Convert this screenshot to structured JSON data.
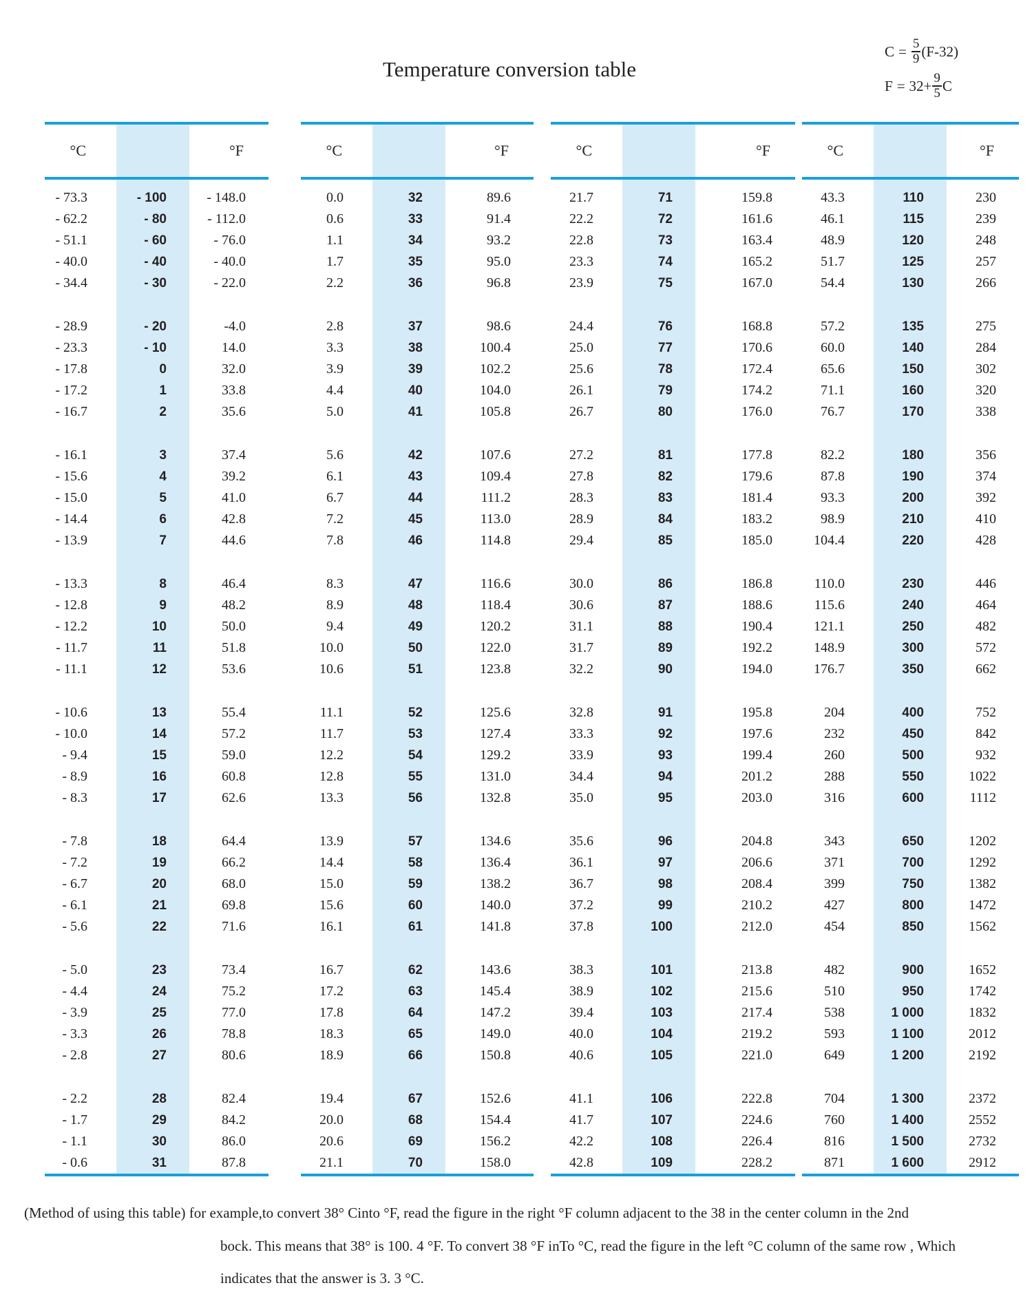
{
  "page": {
    "title": "Temperature conversion table"
  },
  "formulas": {
    "celsius": {
      "lhs": "C",
      "eq": "=",
      "pre": "",
      "num": "5",
      "den": "9",
      "suf": "(F-32)"
    },
    "fahrenheit": {
      "lhs": "F",
      "eq": "=",
      "pre": "32+",
      "num": "9",
      "den": "5",
      "suf": "C"
    }
  },
  "table": {
    "col_c": "°C",
    "col_f": "°F",
    "groups": [
      {
        "blocks": [
          [
            [
              "- 73.3",
              "- 100",
              "- 148.0"
            ],
            [
              "- 62.2",
              "- 80",
              "- 112.0"
            ],
            [
              "- 51.1",
              "- 60",
              "- 76.0"
            ],
            [
              "- 40.0",
              "- 40",
              "- 40.0"
            ],
            [
              "- 34.4",
              "- 30",
              "- 22.0"
            ]
          ],
          [
            [
              "- 28.9",
              "- 20",
              "-4.0"
            ],
            [
              "- 23.3",
              "- 10",
              "14.0"
            ],
            [
              "- 17.8",
              "0",
              "32.0"
            ],
            [
              "- 17.2",
              "1",
              "33.8"
            ],
            [
              "- 16.7",
              "2",
              "35.6"
            ]
          ],
          [
            [
              "- 16.1",
              "3",
              "37.4"
            ],
            [
              "- 15.6",
              "4",
              "39.2"
            ],
            [
              "- 15.0",
              "5",
              "41.0"
            ],
            [
              "- 14.4",
              "6",
              "42.8"
            ],
            [
              "- 13.9",
              "7",
              "44.6"
            ]
          ],
          [
            [
              "- 13.3",
              "8",
              "46.4"
            ],
            [
              "- 12.8",
              "9",
              "48.2"
            ],
            [
              "- 12.2",
              "10",
              "50.0"
            ],
            [
              "- 11.7",
              "11",
              "51.8"
            ],
            [
              "- 11.1",
              "12",
              "53.6"
            ]
          ],
          [
            [
              "- 10.6",
              "13",
              "55.4"
            ],
            [
              "- 10.0",
              "14",
              "57.2"
            ],
            [
              "- 9.4",
              "15",
              "59.0"
            ],
            [
              "- 8.9",
              "16",
              "60.8"
            ],
            [
              "- 8.3",
              "17",
              "62.6"
            ]
          ],
          [
            [
              "- 7.8",
              "18",
              "64.4"
            ],
            [
              "- 7.2",
              "19",
              "66.2"
            ],
            [
              "- 6.7",
              "20",
              "68.0"
            ],
            [
              "- 6.1",
              "21",
              "69.8"
            ],
            [
              "- 5.6",
              "22",
              "71.6"
            ]
          ],
          [
            [
              "- 5.0",
              "23",
              "73.4"
            ],
            [
              "- 4.4",
              "24",
              "75.2"
            ],
            [
              "- 3.9",
              "25",
              "77.0"
            ],
            [
              "- 3.3",
              "26",
              "78.8"
            ],
            [
              "- 2.8",
              "27",
              "80.6"
            ]
          ],
          [
            [
              "- 2.2",
              "28",
              "82.4"
            ],
            [
              "- 1.7",
              "29",
              "84.2"
            ],
            [
              "- 1.1",
              "30",
              "86.0"
            ],
            [
              "- 0.6",
              "31",
              "87.8"
            ]
          ]
        ]
      },
      {
        "blocks": [
          [
            [
              "0.0",
              "32",
              "89.6"
            ],
            [
              "0.6",
              "33",
              "91.4"
            ],
            [
              "1.1",
              "34",
              "93.2"
            ],
            [
              "1.7",
              "35",
              "95.0"
            ],
            [
              "2.2",
              "36",
              "96.8"
            ]
          ],
          [
            [
              "2.8",
              "37",
              "98.6"
            ],
            [
              "3.3",
              "38",
              "100.4"
            ],
            [
              "3.9",
              "39",
              "102.2"
            ],
            [
              "4.4",
              "40",
              "104.0"
            ],
            [
              "5.0",
              "41",
              "105.8"
            ]
          ],
          [
            [
              "5.6",
              "42",
              "107.6"
            ],
            [
              "6.1",
              "43",
              "109.4"
            ],
            [
              "6.7",
              "44",
              "111.2"
            ],
            [
              "7.2",
              "45",
              "113.0"
            ],
            [
              "7.8",
              "46",
              "114.8"
            ]
          ],
          [
            [
              "8.3",
              "47",
              "116.6"
            ],
            [
              "8.9",
              "48",
              "118.4"
            ],
            [
              "9.4",
              "49",
              "120.2"
            ],
            [
              "10.0",
              "50",
              "122.0"
            ],
            [
              "10.6",
              "51",
              "123.8"
            ]
          ],
          [
            [
              "11.1",
              "52",
              "125.6"
            ],
            [
              "11.7",
              "53",
              "127.4"
            ],
            [
              "12.2",
              "54",
              "129.2"
            ],
            [
              "12.8",
              "55",
              "131.0"
            ],
            [
              "13.3",
              "56",
              "132.8"
            ]
          ],
          [
            [
              "13.9",
              "57",
              "134.6"
            ],
            [
              "14.4",
              "58",
              "136.4"
            ],
            [
              "15.0",
              "59",
              "138.2"
            ],
            [
              "15.6",
              "60",
              "140.0"
            ],
            [
              "16.1",
              "61",
              "141.8"
            ]
          ],
          [
            [
              "16.7",
              "62",
              "143.6"
            ],
            [
              "17.2",
              "63",
              "145.4"
            ],
            [
              "17.8",
              "64",
              "147.2"
            ],
            [
              "18.3",
              "65",
              "149.0"
            ],
            [
              "18.9",
              "66",
              "150.8"
            ]
          ],
          [
            [
              "19.4",
              "67",
              "152.6"
            ],
            [
              "20.0",
              "68",
              "154.4"
            ],
            [
              "20.6",
              "69",
              "156.2"
            ],
            [
              "21.1",
              "70",
              "158.0"
            ]
          ]
        ]
      },
      {
        "blocks": [
          [
            [
              "21.7",
              "71",
              "159.8"
            ],
            [
              "22.2",
              "72",
              "161.6"
            ],
            [
              "22.8",
              "73",
              "163.4"
            ],
            [
              "23.3",
              "74",
              "165.2"
            ],
            [
              "23.9",
              "75",
              "167.0"
            ]
          ],
          [
            [
              "24.4",
              "76",
              "168.8"
            ],
            [
              "25.0",
              "77",
              "170.6"
            ],
            [
              "25.6",
              "78",
              "172.4"
            ],
            [
              "26.1",
              "79",
              "174.2"
            ],
            [
              "26.7",
              "80",
              "176.0"
            ]
          ],
          [
            [
              "27.2",
              "81",
              "177.8"
            ],
            [
              "27.8",
              "82",
              "179.6"
            ],
            [
              "28.3",
              "83",
              "181.4"
            ],
            [
              "28.9",
              "84",
              "183.2"
            ],
            [
              "29.4",
              "85",
              "185.0"
            ]
          ],
          [
            [
              "30.0",
              "86",
              "186.8"
            ],
            [
              "30.6",
              "87",
              "188.6"
            ],
            [
              "31.1",
              "88",
              "190.4"
            ],
            [
              "31.7",
              "89",
              "192.2"
            ],
            [
              "32.2",
              "90",
              "194.0"
            ]
          ],
          [
            [
              "32.8",
              "91",
              "195.8"
            ],
            [
              "33.3",
              "92",
              "197.6"
            ],
            [
              "33.9",
              "93",
              "199.4"
            ],
            [
              "34.4",
              "94",
              "201.2"
            ],
            [
              "35.0",
              "95",
              "203.0"
            ]
          ],
          [
            [
              "35.6",
              "96",
              "204.8"
            ],
            [
              "36.1",
              "97",
              "206.6"
            ],
            [
              "36.7",
              "98",
              "208.4"
            ],
            [
              "37.2",
              "99",
              "210.2"
            ],
            [
              "37.8",
              "100",
              "212.0"
            ]
          ],
          [
            [
              "38.3",
              "101",
              "213.8"
            ],
            [
              "38.9",
              "102",
              "215.6"
            ],
            [
              "39.4",
              "103",
              "217.4"
            ],
            [
              "40.0",
              "104",
              "219.2"
            ],
            [
              "40.6",
              "105",
              "221.0"
            ]
          ],
          [
            [
              "41.1",
              "106",
              "222.8"
            ],
            [
              "41.7",
              "107",
              "224.6"
            ],
            [
              "42.2",
              "108",
              "226.4"
            ],
            [
              "42.8",
              "109",
              "228.2"
            ]
          ]
        ]
      },
      {
        "blocks": [
          [
            [
              "43.3",
              "110",
              "230"
            ],
            [
              "46.1",
              "115",
              "239"
            ],
            [
              "48.9",
              "120",
              "248"
            ],
            [
              "51.7",
              "125",
              "257"
            ],
            [
              "54.4",
              "130",
              "266"
            ]
          ],
          [
            [
              "57.2",
              "135",
              "275"
            ],
            [
              "60.0",
              "140",
              "284"
            ],
            [
              "65.6",
              "150",
              "302"
            ],
            [
              "71.1",
              "160",
              "320"
            ],
            [
              "76.7",
              "170",
              "338"
            ]
          ],
          [
            [
              "82.2",
              "180",
              "356"
            ],
            [
              "87.8",
              "190",
              "374"
            ],
            [
              "93.3",
              "200",
              "392"
            ],
            [
              "98.9",
              "210",
              "410"
            ],
            [
              "104.4",
              "220",
              "428"
            ]
          ],
          [
            [
              "110.0",
              "230",
              "446"
            ],
            [
              "115.6",
              "240",
              "464"
            ],
            [
              "121.1",
              "250",
              "482"
            ],
            [
              "148.9",
              "300",
              "572"
            ],
            [
              "176.7",
              "350",
              "662"
            ]
          ],
          [
            [
              "204",
              "400",
              "752"
            ],
            [
              "232",
              "450",
              "842"
            ],
            [
              "260",
              "500",
              "932"
            ],
            [
              "288",
              "550",
              "1022"
            ],
            [
              "316",
              "600",
              "1112"
            ]
          ],
          [
            [
              "343",
              "650",
              "1202"
            ],
            [
              "371",
              "700",
              "1292"
            ],
            [
              "399",
              "750",
              "1382"
            ],
            [
              "427",
              "800",
              "1472"
            ],
            [
              "454",
              "850",
              "1562"
            ]
          ],
          [
            [
              "482",
              "900",
              "1652"
            ],
            [
              "510",
              "950",
              "1742"
            ],
            [
              "538",
              "1 000",
              "1832"
            ],
            [
              "593",
              "1 100",
              "2012"
            ],
            [
              "649",
              "1 200",
              "2192"
            ]
          ],
          [
            [
              "704",
              "1 300",
              "2372"
            ],
            [
              "760",
              "1 400",
              "2552"
            ],
            [
              "816",
              "1 500",
              "2732"
            ],
            [
              "871",
              "1 600",
              "2912"
            ]
          ]
        ]
      }
    ]
  },
  "footer": {
    "line1": "(Method of using this table) for example,to convert 38° Cinto °F, read  the  figure  in  the  right  °F  column  adjacent to the 38 in the center column in the 2nd",
    "line2": "bock. This means that 38° is 100. 4 °F. To convert 38 °F inTo °C, read the figure in the left °C column of  the  same  row  , Which",
    "line3": "indicates  that  the  answer  is  3. 3 °C."
  },
  "colors": {
    "rule_blue": "#18a0dd",
    "band_blue": "#d6ebf8",
    "text": "#231f20"
  }
}
